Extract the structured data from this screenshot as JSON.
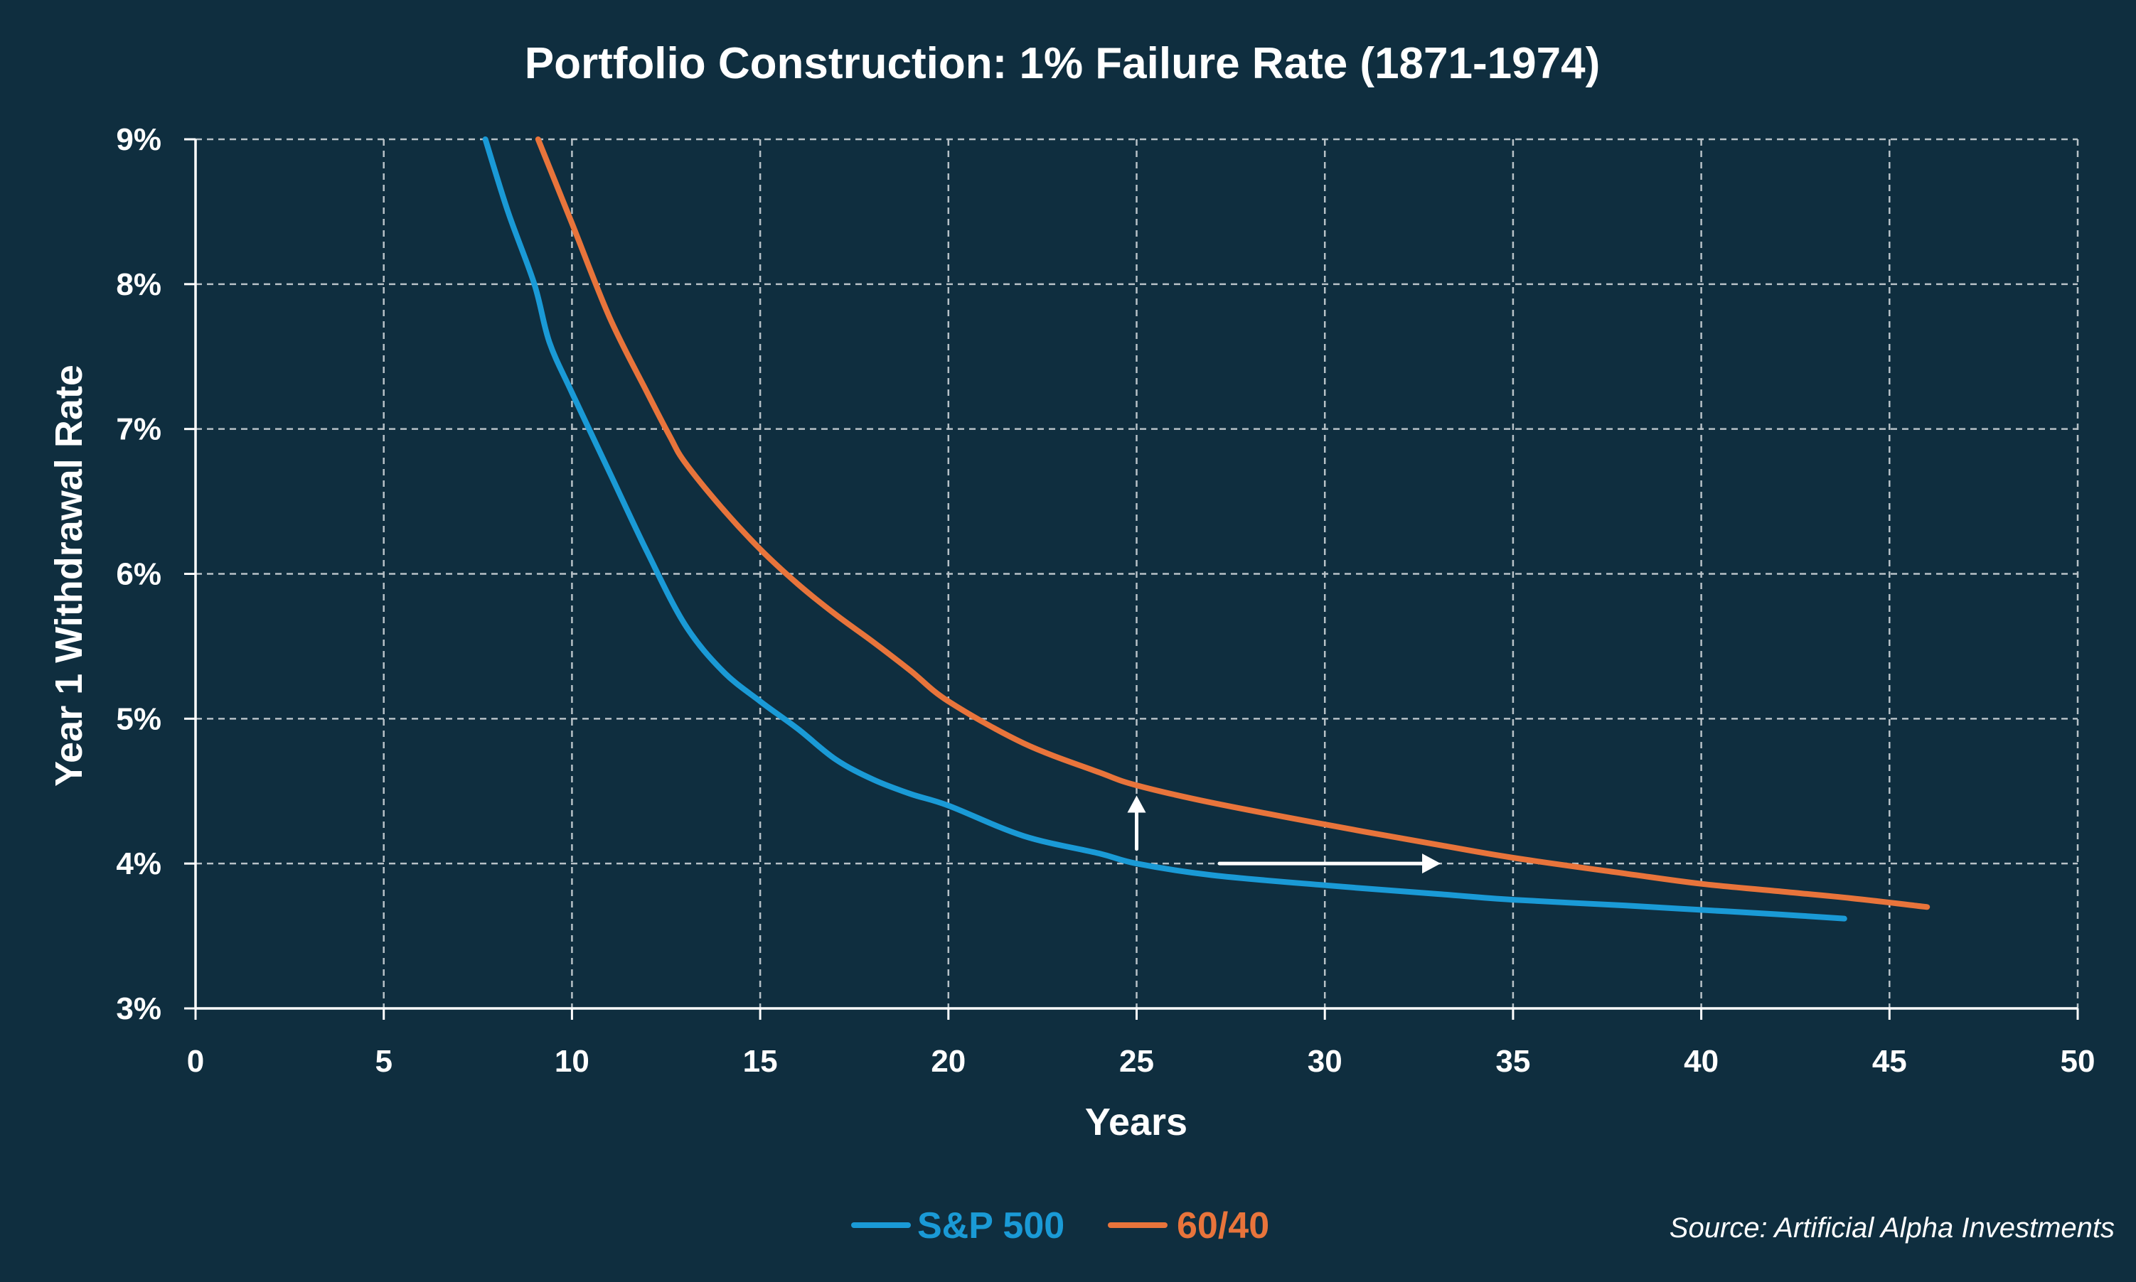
{
  "chart_data": {
    "type": "line",
    "title": "Portfolio Construction: 1% Failure Rate (1871-1974)",
    "xlabel": "Years",
    "ylabel": "Year 1 Withdrawal Rate",
    "xlim": [
      0,
      50
    ],
    "ylim": [
      3,
      9
    ],
    "x_ticks": [
      "0",
      "5",
      "10",
      "15",
      "20",
      "25",
      "30",
      "35",
      "40",
      "45",
      "50"
    ],
    "y_ticks": [
      "3%",
      "4%",
      "5%",
      "6%",
      "7%",
      "8%",
      "9%"
    ],
    "grid": true,
    "legend_position": "bottom-center",
    "series": [
      {
        "name": "S&P 500",
        "color": "#1a9ad6",
        "x": [
          7.7,
          8.3,
          9.0,
          9.4,
          10.0,
          11.0,
          12.0,
          13.0,
          14.0,
          15.0,
          16.0,
          17.0,
          18.0,
          19.0,
          20.0,
          22.0,
          24.0,
          25.0,
          27.0,
          30.0,
          33.0,
          35.0,
          38.0,
          40.0,
          42.0,
          43.8
        ],
        "values": [
          9.0,
          8.5,
          8.0,
          7.6,
          7.25,
          6.7,
          6.15,
          5.65,
          5.33,
          5.12,
          4.93,
          4.72,
          4.58,
          4.48,
          4.4,
          4.19,
          4.07,
          4.0,
          3.92,
          3.85,
          3.79,
          3.75,
          3.71,
          3.68,
          3.65,
          3.62
        ]
      },
      {
        "name": "60/40",
        "color": "#e8743b",
        "x": [
          9.1,
          10.0,
          11.0,
          12.0,
          12.6,
          13.0,
          14.0,
          15.0,
          16.0,
          17.0,
          18.0,
          19.0,
          20.0,
          22.0,
          24.0,
          25.0,
          27.0,
          30.0,
          33.0,
          35.0,
          38.0,
          40.0,
          42.0,
          44.0,
          46.0
        ],
        "values": [
          9.0,
          8.42,
          7.77,
          7.25,
          6.95,
          6.77,
          6.45,
          6.17,
          5.93,
          5.72,
          5.53,
          5.33,
          5.12,
          4.83,
          4.63,
          4.54,
          4.42,
          4.27,
          4.13,
          4.04,
          3.93,
          3.86,
          3.81,
          3.76,
          3.7
        ]
      }
    ],
    "annotations": [
      {
        "type": "arrow-up",
        "x": 25,
        "y_from": 4.1,
        "y_to": 4.45,
        "color": "#ffffff"
      },
      {
        "type": "arrow-right",
        "y": 4.0,
        "x_from": 27.2,
        "x_to": 33.0,
        "color": "#ffffff"
      }
    ],
    "source": "Source: Artificial Alpha Investments"
  },
  "colors": {
    "background": "#0f2e3f",
    "text": "#ffffff",
    "grid": "#b7c1c7"
  }
}
